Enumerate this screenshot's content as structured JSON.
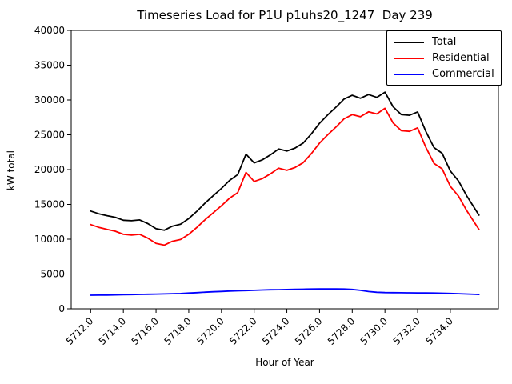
{
  "chart_data": {
    "type": "line",
    "title": "Timeseries Load for P1U p1uhs20_1247  Day 239",
    "xlabel": "Hour of Year",
    "ylabel": "kW total",
    "xlim": [
      5710.81,
      5736.94
    ],
    "ylim": [
      0,
      40000
    ],
    "grid": false,
    "legend_position": "upper right",
    "xticks": {
      "values": [
        5712,
        5714,
        5716,
        5718,
        5720,
        5722,
        5724,
        5726,
        5728,
        5730,
        5732,
        5734
      ],
      "labels": [
        "5712.0",
        "5714.0",
        "5716.0",
        "5718.0",
        "5720.0",
        "5722.0",
        "5724.0",
        "5726.0",
        "5728.0",
        "5730.0",
        "5732.0",
        "5734.0"
      ]
    },
    "yticks": {
      "values": [
        0,
        5000,
        10000,
        15000,
        20000,
        25000,
        30000,
        35000,
        40000
      ],
      "labels": [
        "0",
        "5000",
        "10000",
        "15000",
        "20000",
        "25000",
        "30000",
        "35000",
        "40000"
      ]
    },
    "x": [
      5712.0,
      5712.5,
      5713.0,
      5713.5,
      5714.0,
      5714.5,
      5715.0,
      5715.5,
      5716.0,
      5716.5,
      5717.0,
      5717.5,
      5718.0,
      5718.5,
      5719.0,
      5719.5,
      5720.0,
      5720.5,
      5721.0,
      5721.5,
      5722.0,
      5722.5,
      5723.0,
      5723.5,
      5724.0,
      5724.5,
      5725.0,
      5725.5,
      5726.0,
      5726.5,
      5727.0,
      5727.5,
      5728.0,
      5728.5,
      5729.0,
      5729.5,
      5730.0,
      5730.5,
      5731.0,
      5731.5,
      5732.0,
      5732.5,
      5733.0,
      5733.5,
      5734.0,
      5734.5,
      5735.0,
      5735.5,
      5735.75
    ],
    "series": [
      {
        "name": "Total",
        "color": "#000000",
        "values": [
          14050,
          13660,
          13380,
          13150,
          12720,
          12650,
          12770,
          12240,
          11510,
          11290,
          11870,
          12150,
          12960,
          14020,
          15190,
          16250,
          17300,
          18450,
          19290,
          22220,
          20960,
          21400,
          22130,
          22950,
          22670,
          23090,
          23820,
          25140,
          26650,
          27860,
          28960,
          30140,
          30680,
          30250,
          30780,
          30380,
          31130,
          29020,
          27910,
          27800,
          28290,
          25480,
          23160,
          22340,
          19810,
          18370,
          16230,
          14380,
          13460
        ]
      },
      {
        "name": "Residential",
        "color": "#ff0000",
        "values": [
          12100,
          11700,
          11400,
          11150,
          10700,
          10600,
          10700,
          10150,
          9400,
          9150,
          9700,
          9950,
          10700,
          11700,
          12800,
          13800,
          14800,
          15900,
          16700,
          19600,
          18300,
          18700,
          19400,
          20200,
          19900,
          20300,
          21000,
          22300,
          23800,
          25000,
          26100,
          27300,
          27900,
          27600,
          28300,
          28000,
          28800,
          26700,
          25600,
          25500,
          26000,
          23200,
          20900,
          20100,
          17600,
          16200,
          14100,
          12300,
          11400
        ]
      },
      {
        "name": "Commercial",
        "color": "#0000ff",
        "values": [
          1950,
          1960,
          1980,
          2000,
          2020,
          2050,
          2070,
          2090,
          2110,
          2140,
          2170,
          2200,
          2260,
          2320,
          2390,
          2450,
          2500,
          2550,
          2590,
          2620,
          2660,
          2700,
          2730,
          2750,
          2770,
          2790,
          2820,
          2840,
          2850,
          2860,
          2860,
          2840,
          2780,
          2650,
          2480,
          2380,
          2330,
          2320,
          2310,
          2300,
          2290,
          2280,
          2260,
          2240,
          2210,
          2170,
          2130,
          2080,
          2060
        ]
      }
    ]
  }
}
